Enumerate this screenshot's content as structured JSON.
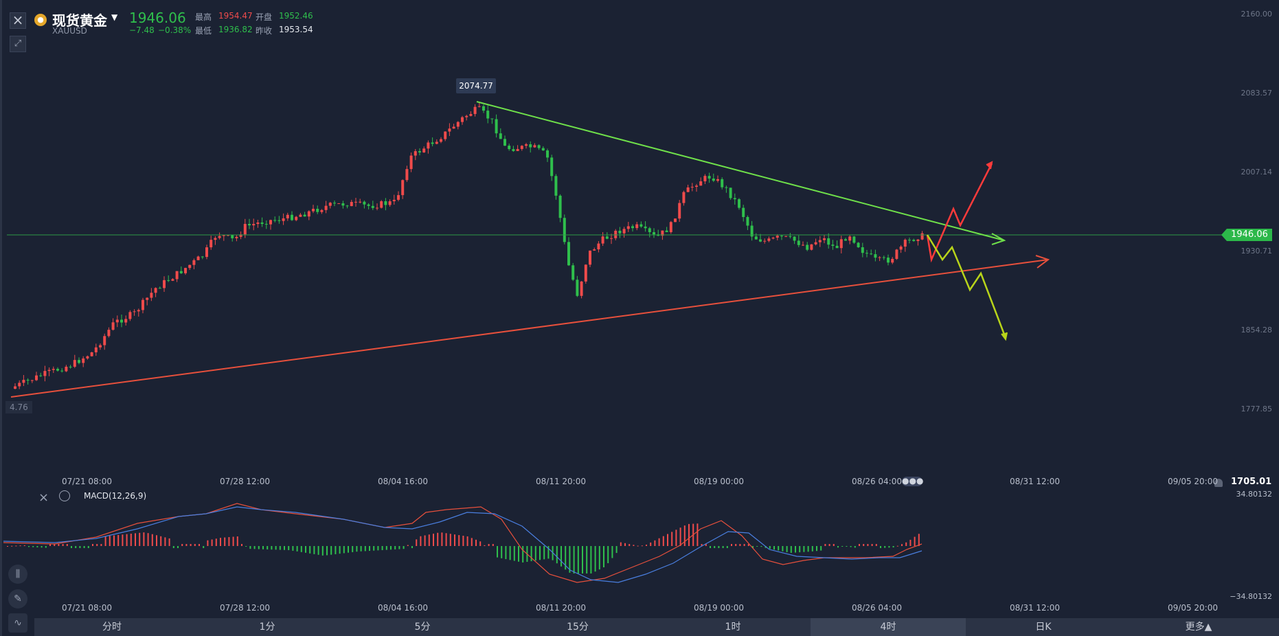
{
  "header": {
    "title": "现货黄金",
    "symbol": "XAUUSD",
    "price": "1946.06",
    "change": "−7.48",
    "change_pct": "−0.38%",
    "high_label": "最高",
    "high": "1954.47",
    "open_label": "开盘",
    "open": "1952.46",
    "low_label": "最低",
    "low": "1936.82",
    "prev_close_label": "昨收",
    "prev_close": "1953.54"
  },
  "chart": {
    "peak_label": "2074.77",
    "left_label": "4.76",
    "current_price": "1946.06",
    "y_axis": [
      "2160.00",
      "2083.57",
      "2007.14",
      "1930.71",
      "1854.28",
      "1777.85",
      "1705.01"
    ],
    "x_axis": [
      "07/21 08:00",
      "07/28 12:00",
      "08/04 16:00",
      "08/11 20:00",
      "08/19 00:00",
      "08/26 04:00",
      "08/31 12:00",
      "09/05 20:00"
    ],
    "colors": {
      "up": "#ef4b4b",
      "down": "#2fbf4c",
      "trend_upper": "#6fe04a",
      "trend_lower": "#e8503c",
      "arrow_red": "#ff3b3b",
      "arrow_yellow": "#b8d41a"
    }
  },
  "macd": {
    "label": "MACD(12,26,9)",
    "y_axis": [
      "34.80132",
      "−34.80132"
    ],
    "x_axis": [
      "07/21 08:00",
      "07/28 12:00",
      "08/04 16:00",
      "08/11 20:00",
      "08/19 00:00",
      "08/26 04:00",
      "08/31 12:00",
      "09/05 20:00"
    ]
  },
  "tabs": [
    "分时",
    "1分",
    "5分",
    "15分",
    "1时",
    "4时",
    "日K",
    "更多▲"
  ],
  "active_tab": "4时",
  "icons": {
    "close": "close-icon",
    "expand": "expand-icon",
    "gold": "gold-coin-icon",
    "candle": "candlestick-tool-icon",
    "pen": "pen-tool-icon",
    "indicator": "indicator-tool-icon",
    "bell": "bell-icon",
    "eye": "eye-icon"
  }
}
